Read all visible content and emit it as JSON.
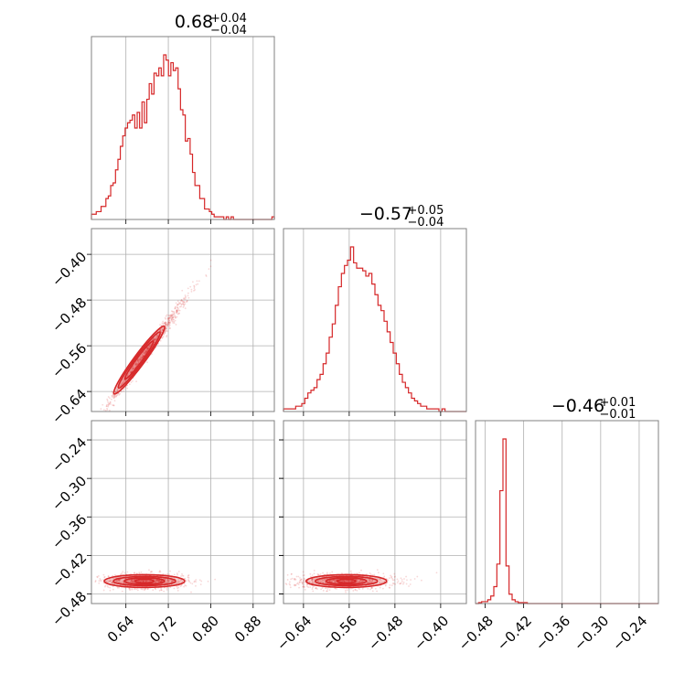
{
  "chart_data": {
    "type": "corner",
    "color": "#d62728",
    "parameters": [
      {
        "title": {
          "median": "0.68",
          "plus": "+0.04",
          "minus": "−0.04"
        },
        "range": [
          0.575,
          0.92
        ],
        "ticks": [
          0.64,
          0.72,
          0.8,
          0.88
        ],
        "tick_labels": [
          "0.64",
          "0.72",
          "0.80",
          "0.88"
        ],
        "hist_edges": [
          0.575,
          0.92
        ],
        "hist_counts": [
          2,
          2,
          3,
          3,
          5,
          5,
          8,
          9,
          13,
          14,
          19,
          23,
          28,
          32,
          35,
          37,
          38,
          40,
          35,
          41,
          35,
          45,
          37,
          46,
          52,
          48,
          56,
          55,
          58,
          55,
          63,
          61,
          55,
          60,
          57,
          58,
          50,
          42,
          40,
          30,
          31,
          25,
          18,
          13,
          13,
          8,
          8,
          4,
          4,
          3,
          2,
          1,
          1,
          1,
          1,
          0,
          1,
          0,
          1,
          0,
          0,
          0,
          0,
          0,
          0,
          0,
          0,
          0,
          0,
          0,
          0,
          0,
          0,
          0,
          0,
          1
        ]
      },
      {
        "title": {
          "median": "−0.57",
          "plus": "+0.05",
          "minus": "−0.04"
        },
        "range": [
          -0.675,
          -0.355
        ],
        "ticks": [
          -0.64,
          -0.56,
          -0.48,
          -0.4
        ],
        "tick_labels": [
          "−0.64",
          "−0.56",
          "−0.48",
          "−0.40"
        ],
        "y_ticks": [
          -0.4,
          -0.48,
          -0.56,
          -0.64
        ],
        "y_tick_labels": [
          "−0.40",
          "−0.48",
          "−0.56",
          "−0.64"
        ],
        "hist_counts": [
          1,
          1,
          1,
          1,
          2,
          2,
          3,
          5,
          7,
          8,
          9,
          12,
          14,
          18,
          22,
          28,
          33,
          40,
          47,
          52,
          55,
          57,
          62,
          56,
          54,
          54,
          53,
          51,
          52,
          48,
          44,
          40,
          38,
          34,
          30,
          26,
          22,
          18,
          14,
          11,
          9,
          7,
          5,
          4,
          3,
          2,
          2,
          1,
          1,
          1,
          1,
          0,
          1,
          0,
          0,
          0,
          0,
          0,
          0,
          0
        ]
      },
      {
        "title": {
          "median": "−0.46",
          "plus": "+0.01",
          "minus": "−0.01"
        },
        "range": [
          -0.495,
          -0.21
        ],
        "ticks": [
          -0.48,
          -0.42,
          -0.36,
          -0.3,
          -0.24
        ],
        "tick_labels": [
          "−0.48",
          "−0.42",
          "−0.36",
          "−0.30",
          "−0.24"
        ],
        "y_ticks": [
          -0.24,
          -0.3,
          -0.36,
          -0.42,
          -0.48
        ],
        "y_tick_labels": [
          "−0.24",
          "−0.30",
          "−0.36",
          "−0.42",
          "−0.48"
        ],
        "hist_counts": [
          0,
          1,
          2,
          2,
          4,
          8,
          18,
          42,
          120,
          175,
          40,
          10,
          4,
          2,
          1,
          1,
          1,
          0,
          0,
          0,
          0,
          0,
          0,
          0,
          0,
          0,
          0,
          0,
          0,
          0,
          0,
          0,
          0,
          0,
          0,
          0,
          0,
          0,
          0,
          0,
          0,
          0,
          0,
          0,
          0,
          0,
          0,
          0,
          0,
          0,
          0,
          0,
          0,
          0,
          0,
          0,
          0,
          0,
          0,
          0
        ]
      }
    ],
    "correlations": {
      "p1_p2": {
        "slope": 1.25,
        "scatter": 0.006
      },
      "p1_p3": {
        "center": -0.46,
        "scatter": 0.006
      },
      "p2_p3": {
        "center": -0.46,
        "scatter": 0.006
      }
    },
    "grid": true
  }
}
